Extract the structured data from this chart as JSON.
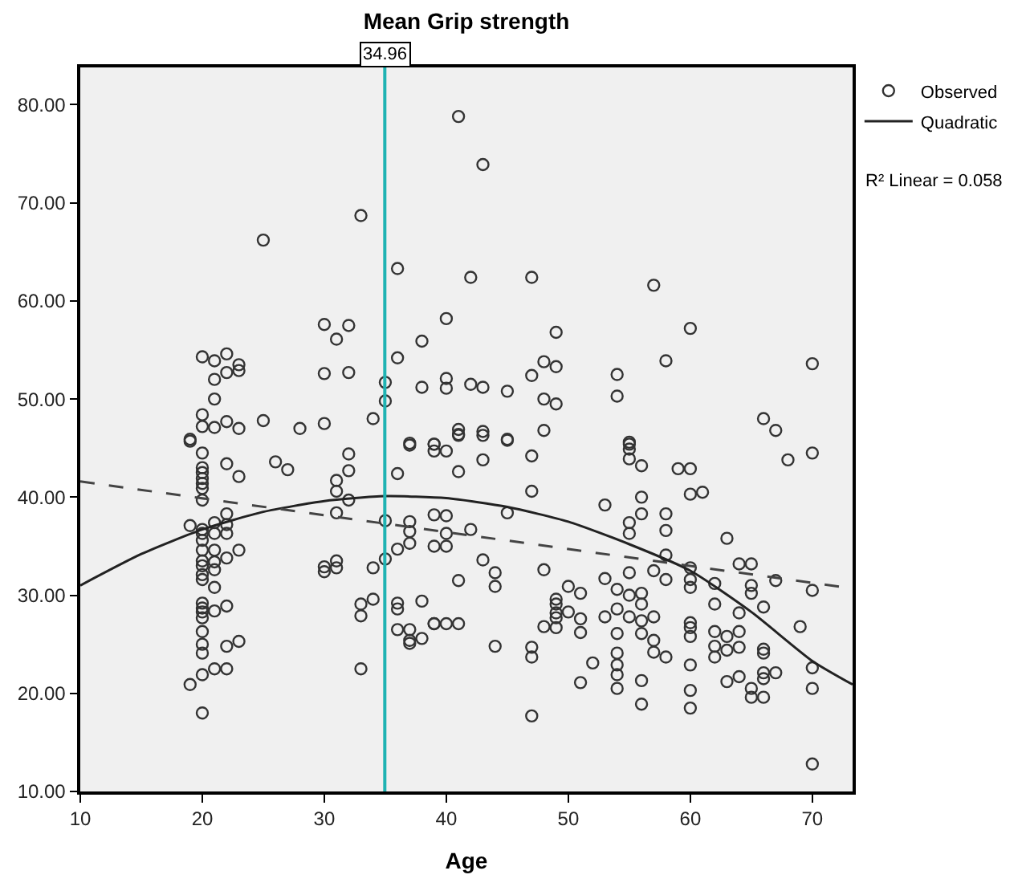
{
  "chart_data": {
    "type": "scatter",
    "title": "Mean Grip strength",
    "xlabel": "Age",
    "xlim": [
      10,
      73.3
    ],
    "xticks": [
      10,
      20,
      30,
      40,
      50,
      60,
      70
    ],
    "ylim": [
      10,
      83.8
    ],
    "yticks": [
      {
        "value": 10,
        "label": "10.00"
      },
      {
        "value": 20,
        "label": "20.00"
      },
      {
        "value": 30,
        "label": "30.00"
      },
      {
        "value": 40,
        "label": "40.00"
      },
      {
        "value": 50,
        "label": "50.00"
      },
      {
        "value": 60,
        "label": "60.00"
      },
      {
        "value": 70,
        "label": "70.00"
      },
      {
        "value": 80,
        "label": "80.00"
      }
    ],
    "grid": false,
    "legend": "top right",
    "annotations": [
      "R² Linear = 0.058"
    ],
    "ref_lines": [
      {
        "axis": "x",
        "value": 34.96,
        "label": "34.96",
        "color": "#1fb3b3"
      }
    ],
    "series": [
      {
        "name": "Observed",
        "color": "#333333",
        "marker": "circle",
        "x": [
          25,
          33,
          36,
          30,
          32,
          31,
          38,
          20,
          21,
          22,
          23,
          23,
          22,
          21,
          30,
          32,
          36,
          35,
          38,
          35,
          21,
          20,
          20,
          21,
          22,
          23,
          25,
          28,
          30,
          34,
          19,
          37,
          41,
          43,
          42,
          47,
          57,
          40,
          60,
          49,
          58,
          48,
          49,
          70,
          47,
          54,
          54,
          40,
          40,
          42,
          43,
          45,
          48,
          49,
          66,
          67,
          41,
          41,
          43,
          45,
          48,
          55,
          39,
          39,
          19,
          20,
          20,
          20,
          20,
          20,
          20,
          20,
          22,
          23,
          26,
          27,
          32,
          32,
          31,
          31,
          32,
          31,
          36,
          37,
          39,
          19,
          20,
          20,
          20,
          21,
          22,
          22,
          21,
          22,
          21,
          20,
          23,
          20,
          20,
          20,
          20,
          21,
          21,
          22,
          21,
          20,
          20,
          20,
          20,
          20,
          20,
          20,
          21,
          22,
          22,
          23,
          20,
          21,
          22,
          19,
          20,
          30,
          30,
          31,
          31,
          34,
          35,
          35,
          36,
          37,
          37,
          37,
          39,
          39,
          33,
          33,
          34,
          36,
          36,
          38,
          36,
          37,
          37,
          37,
          38,
          39,
          33,
          40,
          41,
          43,
          45,
          41,
          43,
          47,
          47,
          55,
          55,
          55,
          56,
          59,
          60,
          60,
          61,
          68,
          70,
          40,
          40,
          40,
          42,
          45,
          43,
          44,
          44,
          41,
          48,
          39,
          40,
          41,
          44,
          47,
          47,
          47,
          53,
          56,
          56,
          55,
          55,
          58,
          58,
          58,
          57,
          58,
          55,
          53,
          50,
          51,
          54,
          55,
          56,
          56,
          49,
          49,
          49,
          49,
          49,
          50,
          51,
          51,
          48,
          53,
          54,
          55,
          56,
          57,
          54,
          56,
          57,
          57,
          58,
          52,
          54,
          54,
          54,
          54,
          51,
          56,
          56,
          60,
          60,
          60,
          60,
          60,
          60,
          60,
          60,
          60,
          62,
          62,
          63,
          64,
          65,
          65,
          65,
          67,
          70,
          64,
          66,
          62,
          62,
          62,
          63,
          63,
          64,
          64,
          66,
          66,
          63,
          64,
          65,
          65,
          66,
          66,
          66,
          67,
          69,
          70,
          70,
          70
        ],
        "values": [
          66.2,
          68.7,
          63.3,
          57.6,
          57.5,
          56.1,
          55.9,
          54.3,
          53.9,
          54.6,
          53.5,
          52.9,
          52.7,
          52.0,
          52.6,
          52.7,
          54.2,
          51.7,
          51.2,
          49.8,
          50.0,
          48.4,
          47.2,
          47.1,
          47.7,
          47.0,
          47.8,
          47.0,
          47.5,
          48.0,
          45.9,
          45.5,
          78.8,
          73.9,
          62.4,
          62.4,
          61.6,
          58.2,
          57.2,
          56.8,
          53.9,
          53.8,
          53.3,
          53.6,
          52.4,
          52.5,
          50.3,
          52.1,
          51.1,
          51.5,
          51.2,
          50.8,
          50.0,
          49.5,
          48.0,
          46.8,
          46.9,
          46.4,
          46.7,
          45.9,
          46.8,
          45.6,
          45.4,
          45.4,
          45.7,
          44.5,
          43.0,
          42.5,
          41.9,
          41.4,
          40.9,
          39.7,
          43.4,
          42.1,
          43.6,
          42.8,
          44.4,
          42.7,
          41.7,
          40.6,
          39.7,
          38.4,
          42.4,
          45.3,
          44.7,
          37.1,
          36.7,
          36.3,
          35.6,
          37.4,
          38.3,
          37.2,
          36.3,
          36.3,
          34.6,
          34.6,
          34.6,
          33.5,
          33.0,
          32.1,
          31.6,
          33.4,
          32.6,
          33.8,
          30.8,
          29.2,
          28.7,
          28.3,
          27.7,
          26.3,
          25.0,
          24.1,
          28.4,
          28.9,
          24.8,
          25.3,
          21.9,
          22.5,
          22.5,
          20.9,
          18.0,
          32.9,
          32.4,
          32.8,
          33.5,
          32.8,
          37.6,
          33.7,
          34.7,
          37.5,
          36.5,
          35.3,
          35.0,
          38.2,
          29.1,
          27.9,
          29.6,
          29.2,
          28.6,
          29.4,
          26.5,
          26.5,
          25.4,
          25.1,
          25.6,
          27.1,
          22.5,
          44.7,
          46.3,
          46.3,
          45.8,
          42.6,
          43.8,
          44.2,
          40.6,
          45.4,
          44.9,
          43.9,
          43.2,
          42.9,
          42.9,
          40.3,
          40.5,
          43.8,
          44.5,
          38.1,
          36.3,
          35.0,
          36.7,
          38.4,
          33.6,
          32.3,
          30.9,
          31.5,
          32.6,
          27.1,
          27.1,
          27.1,
          24.8,
          24.7,
          23.7,
          17.7,
          39.2,
          40.0,
          38.3,
          37.4,
          36.3,
          38.3,
          36.6,
          34.1,
          32.5,
          31.6,
          32.3,
          31.7,
          30.9,
          30.2,
          30.6,
          30.0,
          30.2,
          29.1,
          29.6,
          29.1,
          28.2,
          27.7,
          26.7,
          28.3,
          27.6,
          26.2,
          26.8,
          27.8,
          28.6,
          27.8,
          27.4,
          27.8,
          26.1,
          26.1,
          25.4,
          24.2,
          23.7,
          23.1,
          24.1,
          22.9,
          21.9,
          20.5,
          21.1,
          21.3,
          18.9,
          32.8,
          31.6,
          30.8,
          27.2,
          26.7,
          25.8,
          22.9,
          20.3,
          18.5,
          31.2,
          29.1,
          35.8,
          33.2,
          33.2,
          31.0,
          30.2,
          31.5,
          30.5,
          28.2,
          28.8,
          26.3,
          24.8,
          23.7,
          25.8,
          24.4,
          26.3,
          24.7,
          24.5,
          24.1,
          21.2,
          21.7,
          20.5,
          19.6,
          22.1,
          21.5,
          19.6,
          22.1,
          26.8,
          22.6,
          20.5,
          12.8
        ]
      },
      {
        "type": "line",
        "name": "Quadratic",
        "color": "#222222",
        "line_style": "solid",
        "x": [
          10,
          15,
          20,
          25,
          30,
          35,
          40,
          45,
          50,
          55,
          60,
          65,
          70,
          73.3
        ],
        "values": [
          31.0,
          34.2,
          36.7,
          38.5,
          39.6,
          40.1,
          39.9,
          39.0,
          37.5,
          35.2,
          32.5,
          28.3,
          23.3,
          20.9
        ]
      },
      {
        "type": "line",
        "color": "#444444",
        "line_style": "dashed",
        "x": [
          10,
          73.3
        ],
        "values": [
          41.6,
          30.7
        ]
      }
    ]
  }
}
